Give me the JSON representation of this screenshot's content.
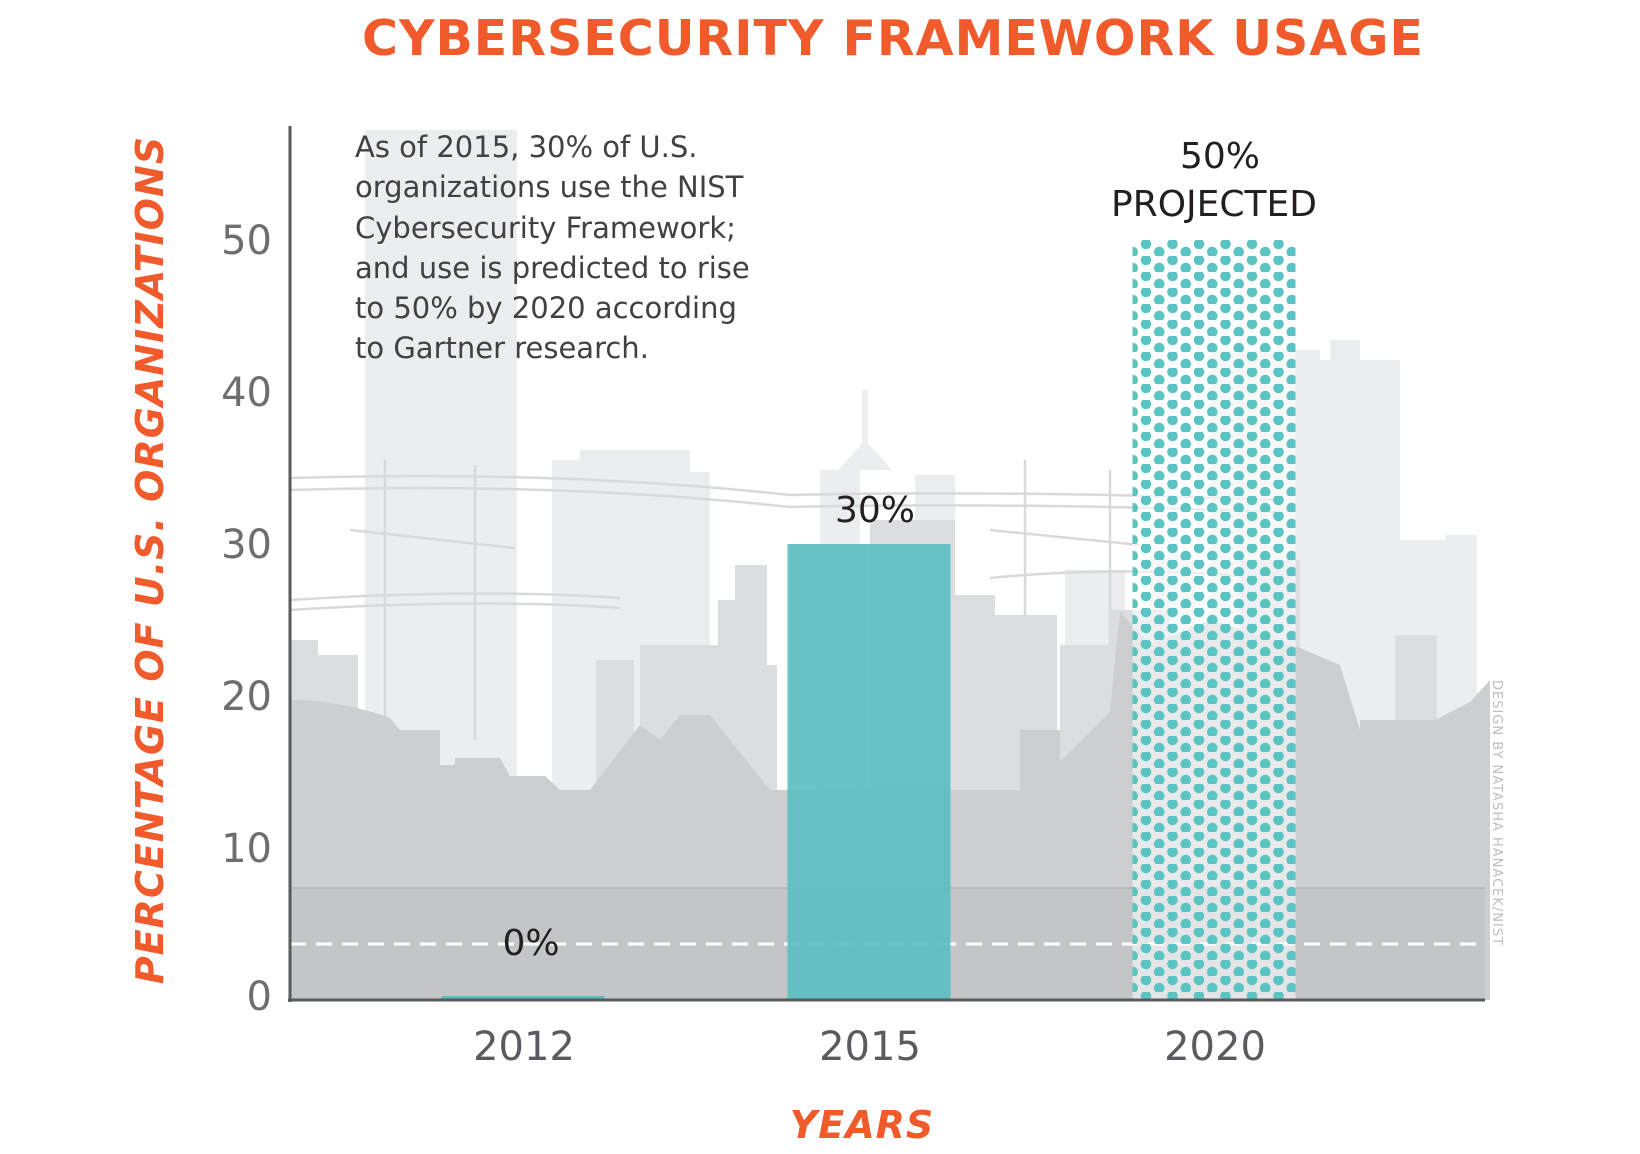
{
  "colors": {
    "title": "#f15a2b",
    "bar_solid": "#5bbfbf",
    "bar_dots": "#5bc4c2",
    "axis": "#58595b",
    "skyline_far": "#e9eaeb",
    "skyline_mid": "#dbdcde",
    "skyline_near": "#cbcccd",
    "ground": "#c3c4c6"
  },
  "chart_data": {
    "type": "bar",
    "title": "CYBERSECURITY FRAMEWORK USAGE",
    "xlabel": "YEARS",
    "ylabel": "PERCENTAGE OF U.S. ORGANIZATIONS",
    "ylim": [
      0,
      50
    ],
    "yticks": [
      "0",
      "10",
      "20",
      "30",
      "40",
      "50"
    ],
    "categories": [
      "2012",
      "2015",
      "2020"
    ],
    "values": [
      0,
      30,
      50
    ],
    "data_labels": [
      "0%",
      "30%",
      "50%"
    ],
    "projected_label": "PROJECTED",
    "projected_index": 2,
    "annotation_lines": [
      "As of 2015, 30% of U.S.",
      "organizations use the NIST",
      "Cybersecurity Framework;",
      "and use is predicted to rise",
      "to 50% by 2020 according",
      "to Gartner research."
    ],
    "credit": "DESIGN BY NATASHA HANACEK/NIST"
  }
}
